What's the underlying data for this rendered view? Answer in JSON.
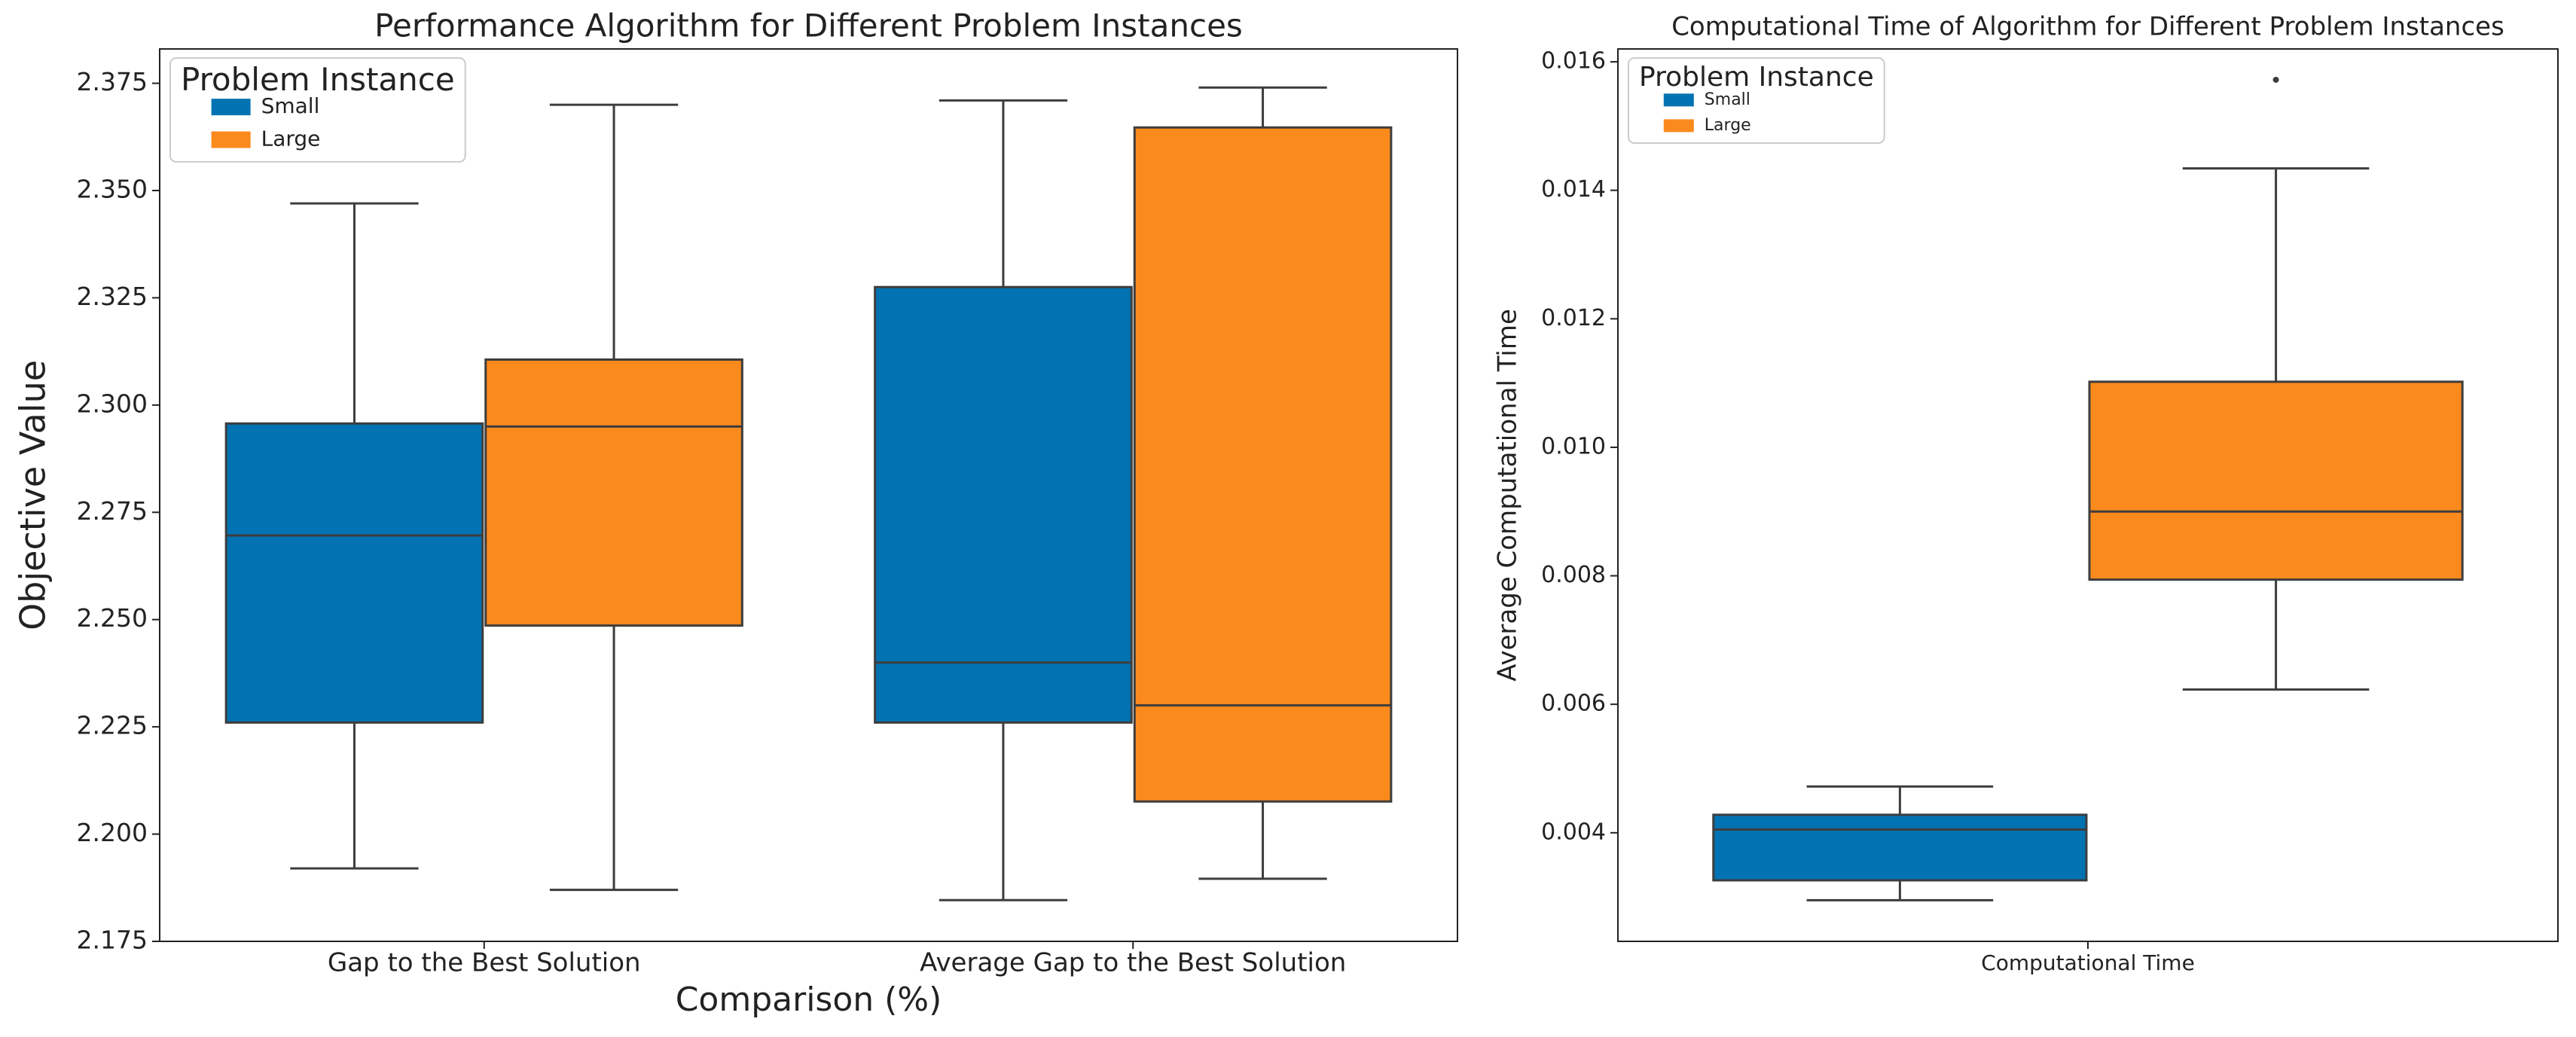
{
  "chart_data": [
    {
      "type": "box",
      "title": "Performance Algorithm for Different Problem Instances",
      "xlabel": "Comparison (%)",
      "ylabel": "Objective Value",
      "categories": [
        "Gap to the Best Solution",
        "Average Gap to the Best Solution"
      ],
      "legend_title": "Problem Instance",
      "legend": "upper left",
      "series": [
        {
          "name": "Small",
          "color": "#0173b2",
          "boxes": [
            {
              "whislo": 2.192,
              "q1": 2.226,
              "med": 2.2696,
              "q3": 2.2957,
              "whishi": 2.347
            },
            {
              "whislo": 2.1846,
              "q1": 2.226,
              "med": 2.24,
              "q3": 2.3275,
              "whishi": 2.371
            }
          ]
        },
        {
          "name": "Large",
          "color": "#fb8a1d",
          "boxes": [
            {
              "whislo": 2.187,
              "q1": 2.2486,
              "med": 2.295,
              "q3": 2.3106,
              "whishi": 2.37
            },
            {
              "whislo": 2.1896,
              "q1": 2.2076,
              "med": 2.23,
              "q3": 2.3647,
              "whishi": 2.374
            }
          ]
        }
      ],
      "ylim": [
        2.175,
        2.383
      ],
      "yticks": [
        2.175,
        {
          "value": 2.2,
          "label": "2.200"
        },
        2.225,
        {
          "value": 2.25,
          "label": "2.250"
        },
        2.275,
        {
          "value": 2.3,
          "label": "2.300"
        },
        2.325,
        {
          "value": 2.35,
          "label": "2.350"
        },
        2.375
      ]
    },
    {
      "type": "box",
      "title": "Computational Time of Algorithm for Different Problem Instances",
      "ylabel": "Average Computational Time",
      "categories": [
        "Computational Time"
      ],
      "legend_title": "Problem Instance",
      "legend": "upper left",
      "series": [
        {
          "name": "Small",
          "color": "#0173b2",
          "boxes": [
            {
              "whislo": 0.00295,
              "q1": 0.00326,
              "med": 0.00405,
              "q3": 0.00428,
              "whishi": 0.00472
            }
          ]
        },
        {
          "name": "Large",
          "color": "#fb8a1d",
          "boxes": [
            {
              "whislo": 0.00623,
              "q1": 0.00794,
              "med": 0.009,
              "q3": 0.01102,
              "whishi": 0.01434,
              "fliers": [
                0.01572
              ]
            }
          ]
        }
      ],
      "ylim": [
        0.00231,
        0.0162
      ],
      "yticks": [
        0.004,
        0.006,
        0.008,
        {
          "value": 0.01,
          "label": "0.010"
        },
        0.012,
        0.014,
        0.016
      ]
    }
  ]
}
